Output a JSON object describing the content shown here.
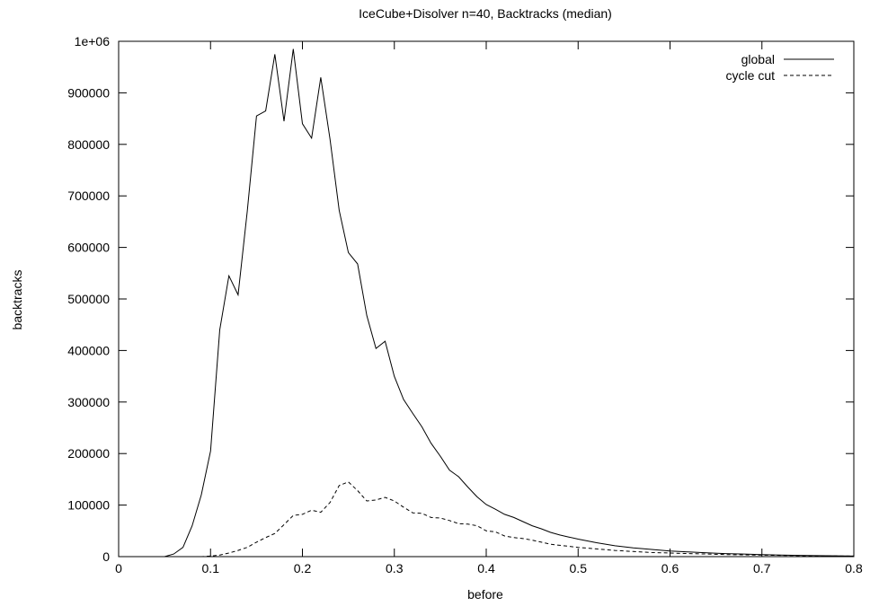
{
  "chart_data": {
    "type": "line",
    "title": "IceCube+Disolver n=40, Backtracks (median)",
    "xlabel": "before",
    "ylabel": "backtracks",
    "xlim": [
      0,
      0.8
    ],
    "ylim": [
      0,
      1000000
    ],
    "x_ticks": [
      0,
      0.1,
      0.2,
      0.3,
      0.4,
      0.5,
      0.6,
      0.7,
      0.8
    ],
    "x_tick_labels": [
      "0",
      "0.1",
      "0.2",
      "0.3",
      "0.4",
      "0.5",
      "0.6",
      "0.7",
      "0.8"
    ],
    "y_ticks": [
      0,
      100000,
      200000,
      300000,
      400000,
      500000,
      600000,
      700000,
      800000,
      900000,
      1000000
    ],
    "y_tick_labels": [
      "0",
      "100000",
      "200000",
      "300000",
      "400000",
      "500000",
      "600000",
      "700000",
      "800000",
      "900000",
      "1e+06"
    ],
    "grid": false,
    "legend_position": "top-right",
    "series": [
      {
        "name": "global",
        "style": "solid",
        "color": "#000000",
        "x": [
          0,
          0.01,
          0.02,
          0.03,
          0.04,
          0.05,
          0.06,
          0.07,
          0.08,
          0.09,
          0.1,
          0.11,
          0.12,
          0.13,
          0.14,
          0.15,
          0.16,
          0.17,
          0.18,
          0.19,
          0.2,
          0.21,
          0.22,
          0.23,
          0.24,
          0.25,
          0.26,
          0.27,
          0.28,
          0.29,
          0.3,
          0.31,
          0.32,
          0.33,
          0.34,
          0.35,
          0.36,
          0.37,
          0.38,
          0.39,
          0.4,
          0.41,
          0.42,
          0.43,
          0.44,
          0.45,
          0.46,
          0.47,
          0.48,
          0.49,
          0.5,
          0.52,
          0.54,
          0.56,
          0.58,
          0.6,
          0.62,
          0.64,
          0.66,
          0.68,
          0.7,
          0.72,
          0.74,
          0.76,
          0.78,
          0.8
        ],
        "y": [
          0,
          0,
          0,
          0,
          0,
          0,
          5000,
          18000,
          60000,
          120000,
          205000,
          440000,
          545000,
          508000,
          670000,
          855000,
          865000,
          975000,
          845000,
          985000,
          840000,
          812000,
          930000,
          810000,
          672000,
          590000,
          568000,
          468000,
          404000,
          418000,
          350000,
          305000,
          278000,
          252000,
          220000,
          195000,
          168000,
          155000,
          135000,
          116000,
          101000,
          92000,
          82000,
          76000,
          68000,
          60000,
          54000,
          47000,
          42000,
          38000,
          34000,
          27000,
          21000,
          17000,
          14000,
          11000,
          9000,
          7500,
          6000,
          5000,
          4000,
          3000,
          2500,
          2000,
          1500,
          1000
        ]
      },
      {
        "name": "cycle cut",
        "style": "dashed",
        "color": "#000000",
        "x": [
          0,
          0.01,
          0.02,
          0.03,
          0.04,
          0.05,
          0.06,
          0.07,
          0.08,
          0.09,
          0.1,
          0.11,
          0.12,
          0.13,
          0.14,
          0.15,
          0.16,
          0.17,
          0.18,
          0.19,
          0.2,
          0.21,
          0.22,
          0.23,
          0.24,
          0.25,
          0.26,
          0.27,
          0.28,
          0.29,
          0.3,
          0.31,
          0.32,
          0.33,
          0.34,
          0.35,
          0.36,
          0.37,
          0.38,
          0.39,
          0.4,
          0.41,
          0.42,
          0.43,
          0.44,
          0.45,
          0.46,
          0.47,
          0.48,
          0.49,
          0.5,
          0.52,
          0.54,
          0.56,
          0.58,
          0.6,
          0.62,
          0.64,
          0.66,
          0.68,
          0.7,
          0.72,
          0.74,
          0.76,
          0.78,
          0.8
        ],
        "y": [
          0,
          0,
          0,
          0,
          0,
          0,
          0,
          0,
          0,
          0,
          1000,
          3000,
          7000,
          12000,
          18000,
          28000,
          37000,
          45000,
          62000,
          80000,
          82000,
          90000,
          86000,
          105000,
          138000,
          145000,
          128000,
          108000,
          110000,
          115000,
          108000,
          96000,
          85000,
          84000,
          76000,
          75000,
          70000,
          64000,
          63000,
          60000,
          50000,
          48000,
          40000,
          37000,
          35000,
          32000,
          28000,
          24000,
          22000,
          20000,
          18000,
          15000,
          12000,
          10000,
          8000,
          7000,
          6000,
          5000,
          4000,
          3500,
          3000,
          2500,
          2000,
          1500,
          1200,
          1000
        ]
      }
    ]
  }
}
